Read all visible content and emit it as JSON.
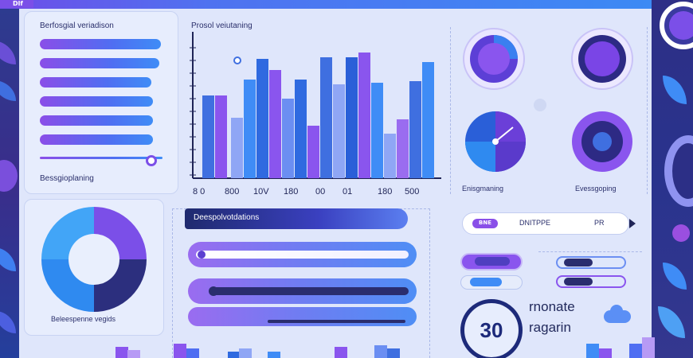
{
  "header": {
    "badge": "Dlf"
  },
  "panel_bars": {
    "title": "Berfosgial veriadison",
    "footer": "Bessgioplaning",
    "bar_fills": [
      0.77,
      0.76,
      0.71,
      0.72,
      0.72,
      0.72,
      0.78
    ]
  },
  "panel_chart": {
    "title": "Prosol veiutaning",
    "x_tick_labels": [
      "8 0",
      "800",
      "10V",
      "180",
      "00",
      "01",
      "180",
      "500"
    ]
  },
  "panel_gauges": {
    "labels": [
      "Enisgmaning",
      "Evessgoping"
    ]
  },
  "panel_donut": {
    "label": "Beleespenne vegids"
  },
  "panel_sliders": {
    "header": "Deespolvotdations"
  },
  "panel_compare": {
    "label_left": "DNITPPE",
    "label_right": "PR",
    "pill_badge": "BNE"
  },
  "panel_counter": {
    "value": "30",
    "line1": "rnonate",
    "line2": "ragarin"
  },
  "colors": {
    "accent_purple": "#7b4fe8",
    "accent_blue": "#3f8cf6",
    "navy": "#1f2a6e"
  }
}
